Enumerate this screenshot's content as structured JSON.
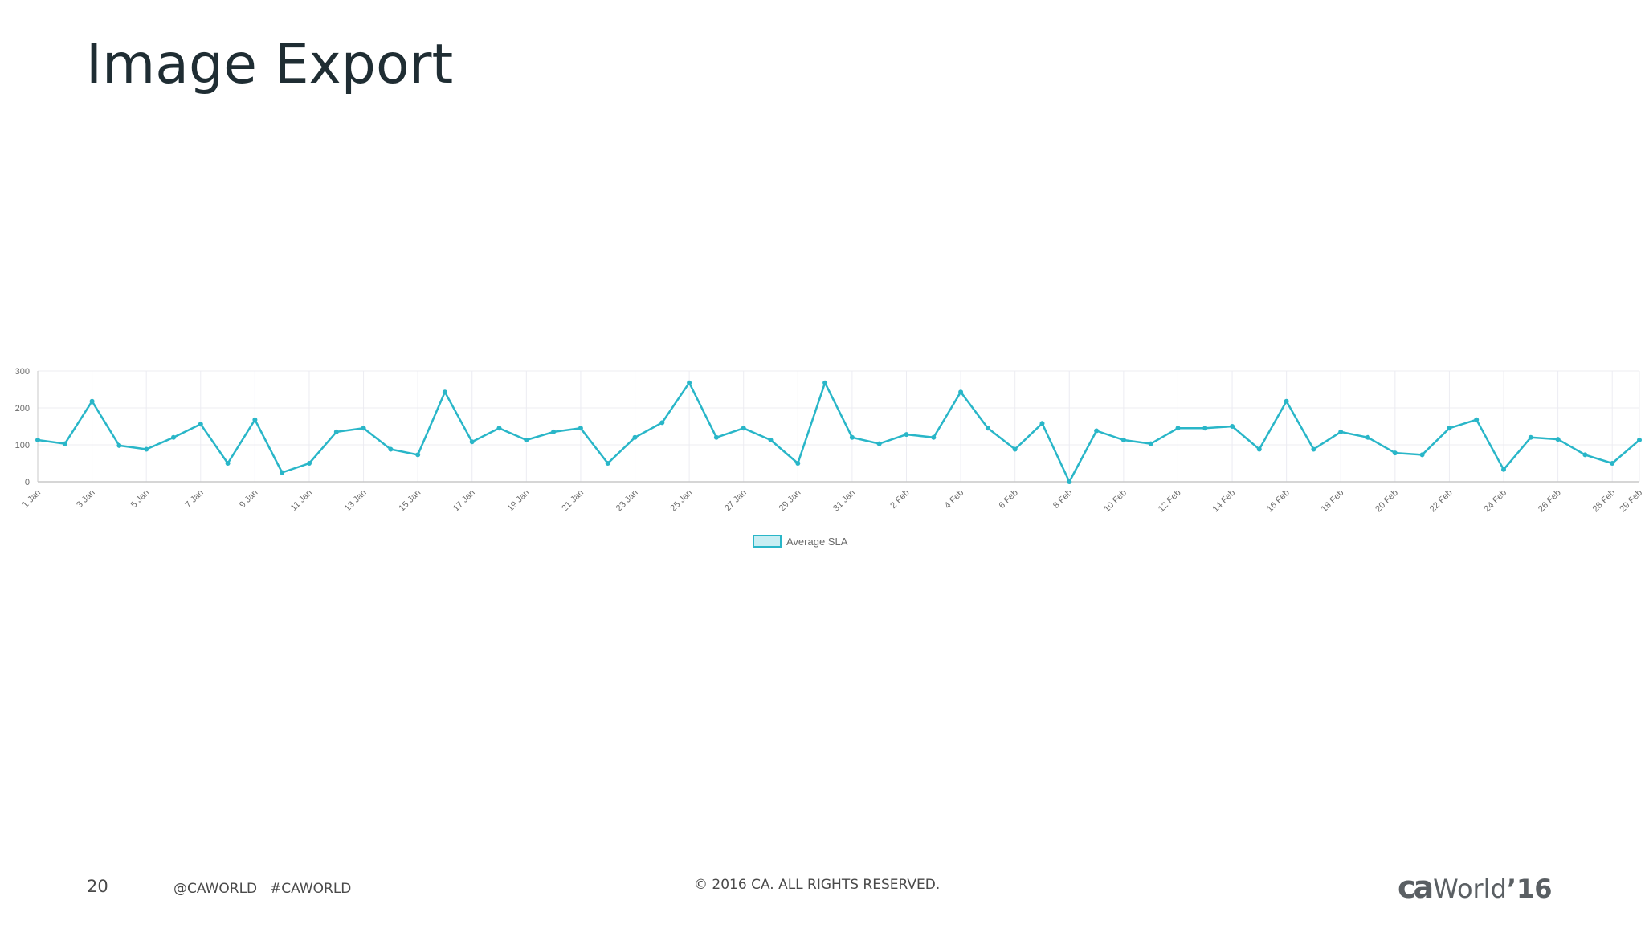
{
  "slide": {
    "title": "Image Export",
    "page_number": "20",
    "social_handle": "@CAWORLD",
    "hashtag": "#CAWORLD",
    "copyright": "© 2016 CA. ALL RIGHTS RESERVED.",
    "brand_ca": "ca",
    "brand_world": "World",
    "brand_year": "’16"
  },
  "colors": {
    "line": "#29b6c8",
    "legend_fill": "#c8eef3",
    "grid": "#ececf2",
    "axis": "#c8c8c8"
  },
  "chart_data": {
    "type": "line",
    "title": "",
    "xlabel": "",
    "ylabel": "",
    "ylim": [
      0,
      300
    ],
    "y_ticks": [
      0,
      100,
      200,
      300
    ],
    "grid": true,
    "legend_position": "bottom-center",
    "tick_labels": [
      "1 Jan",
      "3 Jan",
      "5 Jan",
      "7 Jan",
      "9 Jan",
      "11 Jan",
      "13 Jan",
      "15 Jan",
      "17 Jan",
      "19 Jan",
      "21 Jan",
      "23 Jan",
      "25 Jan",
      "27 Jan",
      "29 Jan",
      "31 Jan",
      "2 Feb",
      "4 Feb",
      "6 Feb",
      "8 Feb",
      "10 Feb",
      "12 Feb",
      "14 Feb",
      "16 Feb",
      "18 Feb",
      "20 Feb",
      "22 Feb",
      "24 Feb",
      "26 Feb",
      "28 Feb",
      "29 Feb"
    ],
    "categories": [
      "1 Jan",
      "2 Jan",
      "3 Jan",
      "4 Jan",
      "5 Jan",
      "6 Jan",
      "7 Jan",
      "8 Jan",
      "9 Jan",
      "10 Jan",
      "11 Jan",
      "12 Jan",
      "13 Jan",
      "14 Jan",
      "15 Jan",
      "16 Jan",
      "17 Jan",
      "18 Jan",
      "19 Jan",
      "20 Jan",
      "21 Jan",
      "22 Jan",
      "23 Jan",
      "24 Jan",
      "25 Jan",
      "26 Jan",
      "27 Jan",
      "28 Jan",
      "29 Jan",
      "30 Jan",
      "31 Jan",
      "1 Feb",
      "2 Feb",
      "3 Feb",
      "4 Feb",
      "5 Feb",
      "6 Feb",
      "7 Feb",
      "8 Feb",
      "9 Feb",
      "10 Feb",
      "11 Feb",
      "12 Feb",
      "13 Feb",
      "14 Feb",
      "15 Feb",
      "16 Feb",
      "17 Feb",
      "18 Feb",
      "19 Feb",
      "20 Feb",
      "21 Feb",
      "22 Feb",
      "23 Feb",
      "24 Feb",
      "25 Feb",
      "26 Feb",
      "27 Feb",
      "28 Feb",
      "29 Feb"
    ],
    "series": [
      {
        "name": "Average SLA",
        "values": [
          113,
          103,
          218,
          98,
          88,
          120,
          156,
          50,
          168,
          25,
          50,
          135,
          145,
          88,
          73,
          243,
          108,
          145,
          113,
          135,
          145,
          50,
          120,
          160,
          268,
          120,
          145,
          113,
          50,
          268,
          120,
          103,
          128,
          120,
          243,
          145,
          88,
          158,
          0,
          138,
          113,
          103,
          145,
          145,
          150,
          88,
          218,
          88,
          135,
          120,
          78,
          73,
          145,
          168,
          33,
          120,
          115,
          73,
          50,
          113
        ]
      }
    ]
  }
}
